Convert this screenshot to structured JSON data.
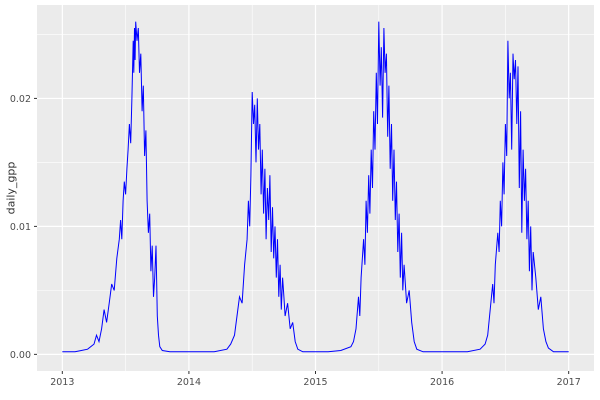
{
  "figure": {
    "background": "#FFFFFF"
  },
  "chart_data": {
    "type": "line",
    "title": "",
    "xlabel": "",
    "ylabel": "daily_gpp",
    "legend": "none",
    "grid": true,
    "x_ticks": [
      2013,
      2014,
      2015,
      2016,
      2017
    ],
    "x_tick_labels": [
      "2013",
      "2014",
      "2015",
      "2016",
      "2017"
    ],
    "x_minor_ticks": [
      2013.5,
      2014.5,
      2015.5,
      2016.5
    ],
    "y_ticks": [
      0.0,
      0.01,
      0.02
    ],
    "y_tick_labels": [
      "0.00",
      "0.01",
      "0.02"
    ],
    "y_minor_ticks": [
      0.005,
      0.015,
      0.025
    ],
    "xlim": [
      2012.8,
      2017.2
    ],
    "ylim": [
      -0.0013,
      0.0273
    ],
    "style": {
      "line_color": "#0000FF",
      "panel_bg": "#EBEBEB",
      "grid_color": "#FFFFFF",
      "tick_label_color": "#4D4D4D",
      "axis_title_color": "#333333",
      "tick_mark_color": "#333333"
    },
    "series": [
      {
        "name": "daily_gpp",
        "points": [
          [
            2013.0,
            0.0002
          ],
          [
            2013.05,
            0.0002
          ],
          [
            2013.1,
            0.0002
          ],
          [
            2013.15,
            0.0003
          ],
          [
            2013.2,
            0.0004
          ],
          [
            2013.25,
            0.0008
          ],
          [
            2013.27,
            0.0015
          ],
          [
            2013.29,
            0.001
          ],
          [
            2013.31,
            0.002
          ],
          [
            2013.33,
            0.0035
          ],
          [
            2013.35,
            0.0025
          ],
          [
            2013.37,
            0.004
          ],
          [
            2013.39,
            0.0055
          ],
          [
            2013.41,
            0.005
          ],
          [
            2013.43,
            0.0075
          ],
          [
            2013.45,
            0.009
          ],
          [
            2013.46,
            0.0105
          ],
          [
            2013.47,
            0.009
          ],
          [
            2013.48,
            0.012
          ],
          [
            2013.49,
            0.0135
          ],
          [
            2013.5,
            0.0125
          ],
          [
            2013.51,
            0.0145
          ],
          [
            2013.52,
            0.016
          ],
          [
            2013.53,
            0.018
          ],
          [
            2013.54,
            0.0165
          ],
          [
            2013.55,
            0.02
          ],
          [
            2013.56,
            0.0245
          ],
          [
            2013.565,
            0.022
          ],
          [
            2013.57,
            0.0255
          ],
          [
            2013.575,
            0.023
          ],
          [
            2013.58,
            0.026
          ],
          [
            2013.59,
            0.0245
          ],
          [
            2013.6,
            0.0255
          ],
          [
            2013.61,
            0.022
          ],
          [
            2013.62,
            0.0235
          ],
          [
            2013.63,
            0.019
          ],
          [
            2013.64,
            0.021
          ],
          [
            2013.65,
            0.0155
          ],
          [
            2013.66,
            0.0175
          ],
          [
            2013.67,
            0.012
          ],
          [
            2013.68,
            0.0095
          ],
          [
            2013.69,
            0.011
          ],
          [
            2013.7,
            0.0065
          ],
          [
            2013.71,
            0.0085
          ],
          [
            2013.72,
            0.0045
          ],
          [
            2013.73,
            0.006
          ],
          [
            2013.74,
            0.0085
          ],
          [
            2013.75,
            0.003
          ],
          [
            2013.76,
            0.0015
          ],
          [
            2013.77,
            0.0006
          ],
          [
            2013.79,
            0.0003
          ],
          [
            2013.85,
            0.0002
          ],
          [
            2013.9,
            0.0002
          ],
          [
            2013.95,
            0.0002
          ],
          [
            2014.0,
            0.0002
          ],
          [
            2014.1,
            0.0002
          ],
          [
            2014.2,
            0.0002
          ],
          [
            2014.3,
            0.0004
          ],
          [
            2014.33,
            0.0008
          ],
          [
            2014.36,
            0.0015
          ],
          [
            2014.38,
            0.003
          ],
          [
            2014.4,
            0.0045
          ],
          [
            2014.42,
            0.004
          ],
          [
            2014.44,
            0.007
          ],
          [
            2014.46,
            0.009
          ],
          [
            2014.47,
            0.012
          ],
          [
            2014.48,
            0.01
          ],
          [
            2014.49,
            0.014
          ],
          [
            2014.5,
            0.0205
          ],
          [
            2014.51,
            0.018
          ],
          [
            2014.52,
            0.0195
          ],
          [
            2014.53,
            0.015
          ],
          [
            2014.54,
            0.02
          ],
          [
            2014.55,
            0.016
          ],
          [
            2014.56,
            0.018
          ],
          [
            2014.57,
            0.0125
          ],
          [
            2014.58,
            0.016
          ],
          [
            2014.59,
            0.011
          ],
          [
            2014.6,
            0.0145
          ],
          [
            2014.61,
            0.009
          ],
          [
            2014.62,
            0.013
          ],
          [
            2014.63,
            0.0105
          ],
          [
            2014.64,
            0.014
          ],
          [
            2014.65,
            0.008
          ],
          [
            2014.66,
            0.0115
          ],
          [
            2014.67,
            0.0075
          ],
          [
            2014.68,
            0.01
          ],
          [
            2014.69,
            0.006
          ],
          [
            2014.7,
            0.009
          ],
          [
            2014.71,
            0.0045
          ],
          [
            2014.72,
            0.007
          ],
          [
            2014.73,
            0.0035
          ],
          [
            2014.74,
            0.006
          ],
          [
            2014.75,
            0.0045
          ],
          [
            2014.76,
            0.003
          ],
          [
            2014.78,
            0.004
          ],
          [
            2014.8,
            0.002
          ],
          [
            2014.82,
            0.0025
          ],
          [
            2014.84,
            0.001
          ],
          [
            2014.86,
            0.0004
          ],
          [
            2014.9,
            0.0002
          ],
          [
            2014.95,
            0.0002
          ],
          [
            2015.0,
            0.0002
          ],
          [
            2015.1,
            0.0002
          ],
          [
            2015.2,
            0.0003
          ],
          [
            2015.28,
            0.0006
          ],
          [
            2015.3,
            0.001
          ],
          [
            2015.32,
            0.002
          ],
          [
            2015.34,
            0.0045
          ],
          [
            2015.35,
            0.003
          ],
          [
            2015.36,
            0.006
          ],
          [
            2015.38,
            0.009
          ],
          [
            2015.39,
            0.007
          ],
          [
            2015.4,
            0.012
          ],
          [
            2015.41,
            0.0095
          ],
          [
            2015.42,
            0.014
          ],
          [
            2015.43,
            0.011
          ],
          [
            2015.44,
            0.016
          ],
          [
            2015.45,
            0.013
          ],
          [
            2015.46,
            0.019
          ],
          [
            2015.47,
            0.016
          ],
          [
            2015.48,
            0.022
          ],
          [
            2015.49,
            0.018
          ],
          [
            2015.5,
            0.026
          ],
          [
            2015.51,
            0.021
          ],
          [
            2015.52,
            0.024
          ],
          [
            2015.53,
            0.0185
          ],
          [
            2015.54,
            0.0255
          ],
          [
            2015.55,
            0.022
          ],
          [
            2015.56,
            0.0235
          ],
          [
            2015.57,
            0.017
          ],
          [
            2015.58,
            0.021
          ],
          [
            2015.59,
            0.0145
          ],
          [
            2015.6,
            0.018
          ],
          [
            2015.61,
            0.012
          ],
          [
            2015.62,
            0.016
          ],
          [
            2015.63,
            0.0105
          ],
          [
            2015.64,
            0.0135
          ],
          [
            2015.65,
            0.008
          ],
          [
            2015.66,
            0.011
          ],
          [
            2015.67,
            0.006
          ],
          [
            2015.68,
            0.0095
          ],
          [
            2015.69,
            0.005
          ],
          [
            2015.7,
            0.007
          ],
          [
            2015.72,
            0.004
          ],
          [
            2015.74,
            0.005
          ],
          [
            2015.76,
            0.0025
          ],
          [
            2015.78,
            0.001
          ],
          [
            2015.8,
            0.0004
          ],
          [
            2015.85,
            0.0002
          ],
          [
            2015.9,
            0.0002
          ],
          [
            2015.95,
            0.0002
          ],
          [
            2016.0,
            0.0002
          ],
          [
            2016.1,
            0.0002
          ],
          [
            2016.2,
            0.0002
          ],
          [
            2016.3,
            0.0004
          ],
          [
            2016.34,
            0.0008
          ],
          [
            2016.36,
            0.0015
          ],
          [
            2016.38,
            0.0035
          ],
          [
            2016.4,
            0.0055
          ],
          [
            2016.41,
            0.004
          ],
          [
            2016.42,
            0.007
          ],
          [
            2016.44,
            0.0095
          ],
          [
            2016.45,
            0.008
          ],
          [
            2016.46,
            0.012
          ],
          [
            2016.47,
            0.01
          ],
          [
            2016.48,
            0.015
          ],
          [
            2016.49,
            0.0125
          ],
          [
            2016.5,
            0.018
          ],
          [
            2016.51,
            0.0155
          ],
          [
            2016.52,
            0.0245
          ],
          [
            2016.53,
            0.02
          ],
          [
            2016.54,
            0.022
          ],
          [
            2016.55,
            0.016
          ],
          [
            2016.56,
            0.0235
          ],
          [
            2016.57,
            0.0215
          ],
          [
            2016.58,
            0.023
          ],
          [
            2016.59,
            0.018
          ],
          [
            2016.6,
            0.0225
          ],
          [
            2016.61,
            0.013
          ],
          [
            2016.62,
            0.019
          ],
          [
            2016.63,
            0.0095
          ],
          [
            2016.64,
            0.016
          ],
          [
            2016.65,
            0.012
          ],
          [
            2016.66,
            0.0145
          ],
          [
            2016.67,
            0.009
          ],
          [
            2016.68,
            0.012
          ],
          [
            2016.69,
            0.0065
          ],
          [
            2016.7,
            0.01
          ],
          [
            2016.71,
            0.005
          ],
          [
            2016.72,
            0.008
          ],
          [
            2016.74,
            0.006
          ],
          [
            2016.76,
            0.0035
          ],
          [
            2016.78,
            0.0045
          ],
          [
            2016.8,
            0.002
          ],
          [
            2016.82,
            0.001
          ],
          [
            2016.84,
            0.0005
          ],
          [
            2016.88,
            0.0002
          ],
          [
            2016.92,
            0.0002
          ],
          [
            2016.96,
            0.0002
          ],
          [
            2017.0,
            0.0002
          ]
        ]
      }
    ]
  }
}
